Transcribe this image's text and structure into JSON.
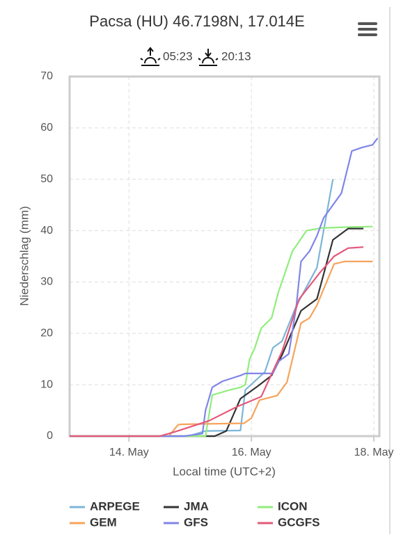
{
  "chart_data": {
    "type": "line",
    "title": "Pacsa (HU) 46.7198N, 17.014E",
    "sunrise": "05:23",
    "sunset": "20:13",
    "ylabel": "Niederschlag (mm)",
    "xlabel": "Local time (UTC+2)",
    "xlim": [
      13.03,
      18.09
    ],
    "ylim": [
      0,
      70
    ],
    "xticks": [
      {
        "value": 14,
        "label": "14. May"
      },
      {
        "value": 16,
        "label": "16. May"
      },
      {
        "value": 18,
        "label": "18. May"
      }
    ],
    "yticks": [
      0,
      10,
      20,
      30,
      40,
      50,
      60,
      70
    ],
    "grid": true,
    "series": [
      {
        "name": "ARPEGE",
        "color": "#7cb5d8",
        "x": [
          13.03,
          14.97,
          15.25,
          15.82,
          15.9,
          16.22,
          16.35,
          16.5,
          16.73,
          17.07,
          17.33
        ],
        "values": [
          0,
          0,
          1,
          1.1,
          9,
          12.5,
          17.2,
          18.5,
          25.3,
          32.8,
          50
        ]
      },
      {
        "name": "JMA",
        "color": "#333333",
        "x": [
          13.03,
          15.4,
          15.59,
          15.82,
          16.1,
          16.33,
          16.5,
          16.81,
          17.07,
          17.33,
          17.58,
          17.83
        ],
        "values": [
          0,
          0,
          1,
          7.3,
          9.7,
          11.8,
          15.8,
          24.4,
          26.7,
          38.2,
          40.4,
          40.4
        ]
      },
      {
        "name": "ICON",
        "color": "#90ed7d",
        "x": [
          13.03,
          15.25,
          15.36,
          15.65,
          15.82,
          15.9,
          15.97,
          16.05,
          16.16,
          16.33,
          16.44,
          16.67,
          16.9,
          17.13,
          17.58,
          17.98
        ],
        "values": [
          0,
          0,
          8,
          9,
          9.5,
          10,
          15,
          17,
          21,
          23,
          28,
          36,
          40,
          40.5,
          40.7,
          40.8
        ]
      },
      {
        "name": "GEM",
        "color": "#f7a35c",
        "x": [
          13.03,
          14.65,
          14.8,
          14.85,
          15.88,
          16.0,
          16.13,
          16.42,
          16.58,
          16.81,
          16.95,
          17.07,
          17.35,
          17.52,
          17.98
        ],
        "values": [
          0,
          0,
          2.2,
          2.3,
          2.5,
          3.5,
          7,
          7.9,
          10.5,
          22,
          23,
          25.5,
          33.5,
          34,
          34
        ]
      },
      {
        "name": "GFS",
        "color": "#8085e9",
        "x": [
          13.03,
          14.9,
          15.2,
          15.25,
          15.36,
          15.53,
          15.82,
          15.9,
          16.35,
          16.44,
          16.61,
          16.73,
          16.81,
          16.95,
          17.07,
          17.18,
          17.47,
          17.64,
          17.81,
          17.98,
          18.06
        ],
        "values": [
          0,
          0,
          0.5,
          5,
          9.5,
          10.7,
          11.8,
          12.2,
          12.2,
          14.5,
          16,
          25,
          34,
          36,
          39,
          42.5,
          47.3,
          55.5,
          56.2,
          56.7,
          58
        ]
      },
      {
        "name": "GCGFS",
        "color": "#e4587a",
        "x": [
          13.03,
          14.5,
          14.74,
          15.31,
          15.76,
          16.16,
          16.5,
          16.78,
          17.13,
          17.35,
          17.58,
          17.83
        ],
        "values": [
          0,
          0,
          0.8,
          3,
          5.7,
          7.7,
          16.5,
          26.7,
          32,
          35,
          36.6,
          36.8
        ]
      }
    ]
  }
}
